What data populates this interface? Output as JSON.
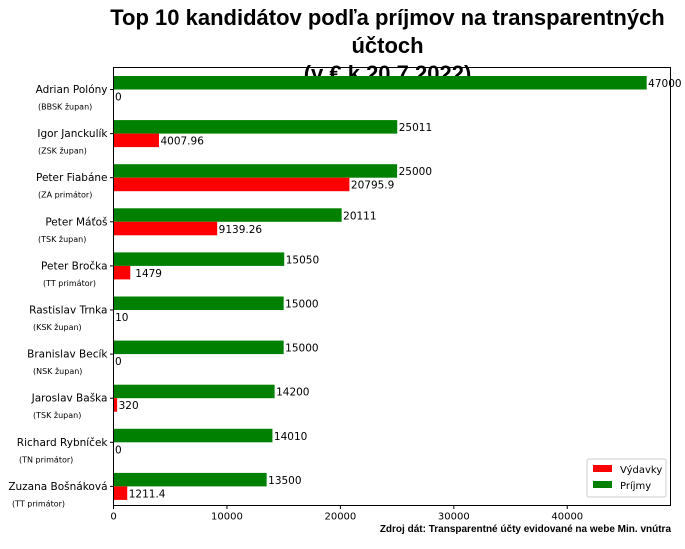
{
  "chart_data": {
    "type": "bar",
    "orientation": "horizontal",
    "title": "Top 10 kandidátov podľa príjmov na transparentných účtoch\n(v € k 20.7.2022)",
    "title_lines": [
      "Top 10 kandidátov podľa príjmov na transparentných účtoch",
      "(v € k 20.7.2022)"
    ],
    "source_note": "Zdroj dát: Transparentné účty evidované na webe Min. vnútra",
    "xlabel": "",
    "ylabel": "",
    "xlim": [
      0,
      49100
    ],
    "xticks": [
      0,
      10000,
      20000,
      30000,
      40000
    ],
    "xtick_labels": [
      "0",
      "10000",
      "20000",
      "30000",
      "40000"
    ],
    "grid": false,
    "legend_position": "lower-right",
    "categories": [
      {
        "name": "Adrian Polóny",
        "role": "(BBSK župan)"
      },
      {
        "name": "Igor Janckulík",
        "role": "(ZSK župan)"
      },
      {
        "name": "Peter Fiabáne",
        "role": "(ZA primátor)"
      },
      {
        "name": "Peter Máťoš",
        "role": "(TSK župan)"
      },
      {
        "name": "Peter Bročka",
        "role": "(TT primátor)"
      },
      {
        "name": "Rastislav Trnka",
        "role": "(KSK župan)"
      },
      {
        "name": "Branislav Becík",
        "role": "(NSK župan)"
      },
      {
        "name": "Jaroslav Baška",
        "role": "(TSK župan)"
      },
      {
        "name": "Richard Rybníček",
        "role": "(TN primátor)"
      },
      {
        "name": "Zuzana Bošnáková",
        "role": "(TT primátor)"
      }
    ],
    "series": [
      {
        "name": "Výdavky",
        "color": "#ff0000",
        "values": [
          0,
          4007.96,
          20795.9,
          9139.26,
          1479,
          10,
          0,
          320,
          0,
          1211.4
        ],
        "labels": [
          "0",
          "4007.96",
          "20795.9",
          "9139.26",
          "1479",
          "10",
          "0",
          "320",
          "0",
          "1211.4"
        ]
      },
      {
        "name": "Príjmy",
        "color": "#008000",
        "values": [
          47000,
          25011,
          25000,
          20111,
          15050,
          15000,
          15000,
          14200,
          14010,
          13500
        ],
        "labels": [
          "47000",
          "25011",
          "25000",
          "20111",
          "15050",
          "15000",
          "15000",
          "14200",
          "14010",
          "13500"
        ]
      }
    ]
  }
}
